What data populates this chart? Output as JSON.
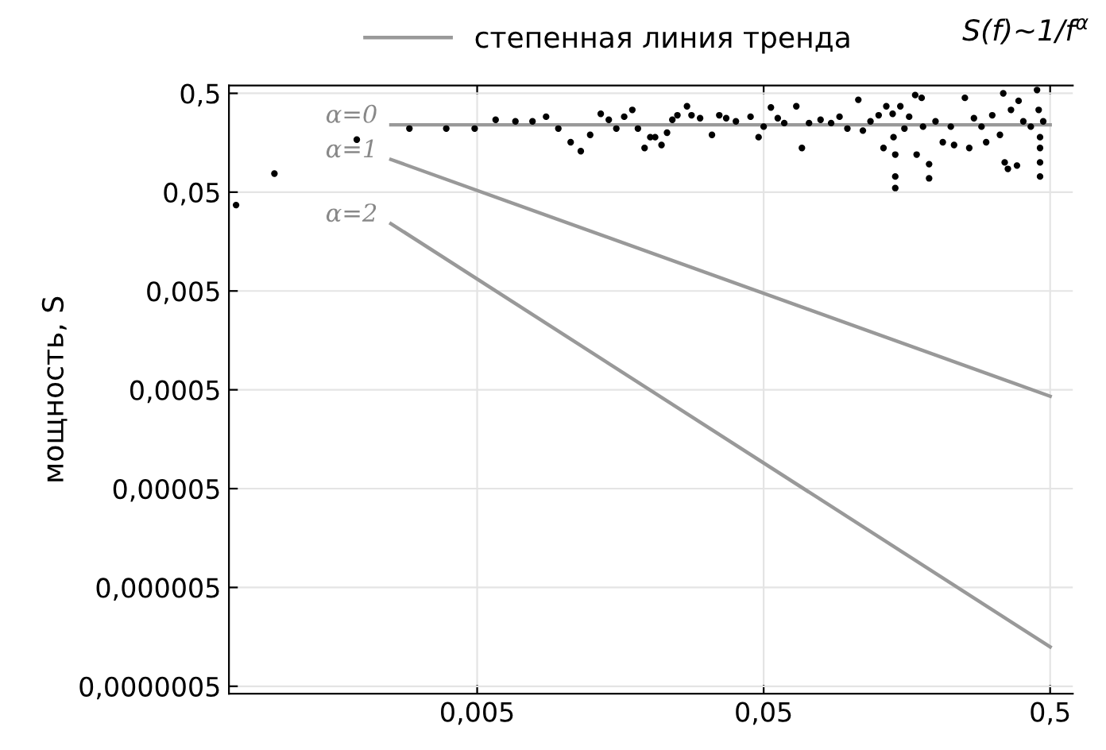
{
  "chart_data": {
    "type": "scatter",
    "log": "xy",
    "grid": true,
    "legend": "top",
    "ylabel": "мощность, S",
    "xlim": [
      0.00068,
      0.6
    ],
    "ylim": [
      4.2e-07,
      0.6
    ],
    "xticks": [
      {
        "value": 0.005,
        "label": "0,005"
      },
      {
        "value": 0.05,
        "label": "0,05"
      },
      {
        "value": 0.5,
        "label": "0,5"
      }
    ],
    "yticks": [
      {
        "value": 5e-07,
        "label": "0,0000005"
      },
      {
        "value": 5e-06,
        "label": "0,000005"
      },
      {
        "value": 5e-05,
        "label": "0,00005"
      },
      {
        "value": 0.0005,
        "label": "0,0005"
      },
      {
        "value": 0.005,
        "label": "0,005"
      },
      {
        "value": 0.05,
        "label": "0,05"
      },
      {
        "value": 0.5,
        "label": "0,5"
      }
    ],
    "series": [
      {
        "color": "#000000",
        "marker": "circle",
        "x": [
          0.00072,
          0.00098,
          0.0019,
          0.0029,
          0.0039,
          0.0049,
          0.0058,
          0.0068,
          0.0078,
          0.0087,
          0.0096,
          0.0106,
          0.0115,
          0.0124,
          0.0135,
          0.0144,
          0.0153,
          0.0163,
          0.0174,
          0.0182,
          0.0192,
          0.0201,
          0.0209,
          0.022,
          0.023,
          0.024,
          0.025,
          0.027,
          0.028,
          0.03,
          0.033,
          0.035,
          0.037,
          0.04,
          0.045,
          0.048,
          0.05,
          0.053,
          0.056,
          0.059,
          0.065,
          0.068,
          0.072,
          0.079,
          0.086,
          0.092,
          0.098,
          0.107,
          0.111,
          0.118,
          0.126,
          0.131,
          0.134,
          0.141,
          0.142,
          0.144,
          0.144,
          0.144,
          0.15,
          0.155,
          0.161,
          0.169,
          0.171,
          0.178,
          0.18,
          0.189,
          0.189,
          0.199,
          0.211,
          0.225,
          0.231,
          0.252,
          0.261,
          0.271,
          0.288,
          0.299,
          0.314,
          0.334,
          0.343,
          0.347,
          0.356,
          0.365,
          0.383,
          0.388,
          0.403,
          0.428,
          0.45,
          0.456,
          0.461,
          0.461,
          0.461,
          0.461,
          0.473
        ],
        "values": [
          0.037,
          0.077,
          0.17,
          0.22,
          0.22,
          0.22,
          0.27,
          0.26,
          0.26,
          0.29,
          0.22,
          0.16,
          0.13,
          0.19,
          0.31,
          0.27,
          0.22,
          0.29,
          0.34,
          0.22,
          0.14,
          0.18,
          0.18,
          0.15,
          0.2,
          0.27,
          0.3,
          0.37,
          0.3,
          0.28,
          0.19,
          0.3,
          0.28,
          0.26,
          0.29,
          0.18,
          0.23,
          0.36,
          0.28,
          0.25,
          0.37,
          0.14,
          0.25,
          0.27,
          0.25,
          0.29,
          0.22,
          0.43,
          0.21,
          0.26,
          0.3,
          0.14,
          0.37,
          0.31,
          0.18,
          0.12,
          0.072,
          0.055,
          0.37,
          0.22,
          0.29,
          0.48,
          0.12,
          0.45,
          0.23,
          0.096,
          0.069,
          0.26,
          0.16,
          0.23,
          0.15,
          0.45,
          0.14,
          0.28,
          0.23,
          0.16,
          0.3,
          0.19,
          0.5,
          0.1,
          0.086,
          0.34,
          0.093,
          0.42,
          0.26,
          0.23,
          0.54,
          0.34,
          0.18,
          0.14,
          0.1,
          0.072,
          0.26
        ]
      },
      {
        "type": "line",
        "name": "степенная линия тренда",
        "color": "#999999",
        "x": [
          0.0025,
          0.5
        ],
        "values": [
          0.24,
          0.24
        ]
      },
      {
        "type": "line",
        "color": "#999999",
        "x": [
          0.0025,
          0.5
        ],
        "values": [
          0.107,
          0.00043
        ]
      },
      {
        "type": "line",
        "color": "#999999",
        "x": [
          0.0025,
          0.5
        ],
        "values": [
          0.024,
          1.25e-06
        ]
      }
    ],
    "annotations": [
      "S(f)~1/f$^{α}$",
      "α=0",
      "α=1",
      "α=2"
    ]
  }
}
